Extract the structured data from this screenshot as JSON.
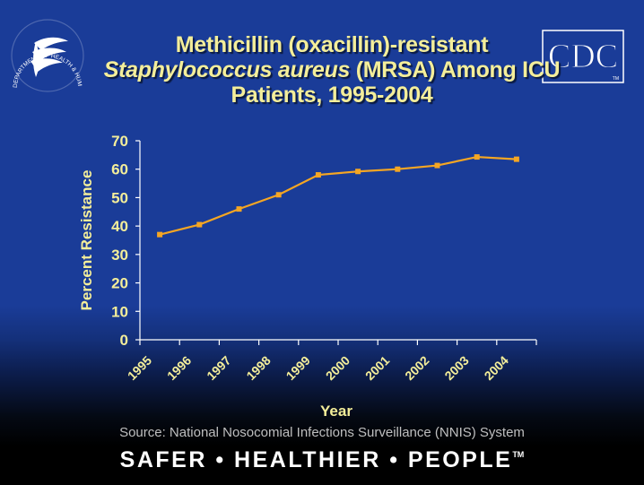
{
  "slide": {
    "title_line1": "Methicillin (oxacillin)-resistant",
    "title_line2_italic": "Staphylococcus aureus",
    "title_line2_rest": " (MRSA) Among ICU",
    "title_line3": "Patients, 1995-2004",
    "cdc_logo_text": "CDC",
    "hhs_seal_text": "DEPARTMENT OF HEALTH & HUMAN SERVICES • USA",
    "source": "Source: National Nosocomial Infections Surveillance (NNIS) System",
    "footer": "SAFER • HEALTHIER • PEOPLE",
    "footer_tm": "TM"
  },
  "colors": {
    "background": "#1a3c98",
    "text_yellow": "#f4ee9a",
    "line": "#f5a623",
    "axis": "#ffffff"
  },
  "chart_data": {
    "type": "line",
    "title": "Methicillin (oxacillin)-resistant Staphylococcus aureus (MRSA) Among ICU Patients, 1995-2004",
    "xlabel": "Year",
    "ylabel": "Percent Resistance",
    "categories": [
      "1995",
      "1996",
      "1997",
      "1998",
      "1999",
      "2000",
      "2001",
      "2002",
      "2003",
      "2004"
    ],
    "series": [
      {
        "name": "MRSA",
        "values": [
          37,
          40.5,
          46,
          51,
          58,
          59.2,
          60,
          61.3,
          64.3,
          63.5
        ]
      }
    ],
    "ylim": [
      0,
      70
    ],
    "yticks": [
      "0",
      "10",
      "20",
      "30",
      "40",
      "50",
      "60",
      "70"
    ],
    "grid": false,
    "legend": "none"
  }
}
